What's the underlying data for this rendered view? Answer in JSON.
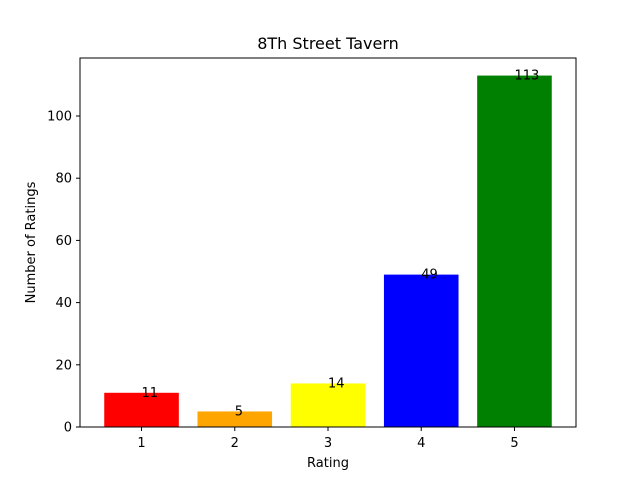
{
  "chart_data": {
    "type": "bar",
    "title": "8Th Street Tavern",
    "xlabel": "Rating",
    "ylabel": "Number of Ratings",
    "categories": [
      "1",
      "2",
      "3",
      "4",
      "5"
    ],
    "values": [
      11,
      5,
      14,
      49,
      113
    ],
    "data_labels": [
      "11",
      "5",
      "14",
      "49",
      "113"
    ],
    "colors": [
      "#ff0000",
      "#ffa500",
      "#ffff00",
      "#0000ff",
      "#008000"
    ],
    "ylim": [
      0,
      118.65
    ],
    "yticks": [
      0,
      20,
      40,
      60,
      80,
      100
    ],
    "grid": false,
    "legend": "none"
  }
}
